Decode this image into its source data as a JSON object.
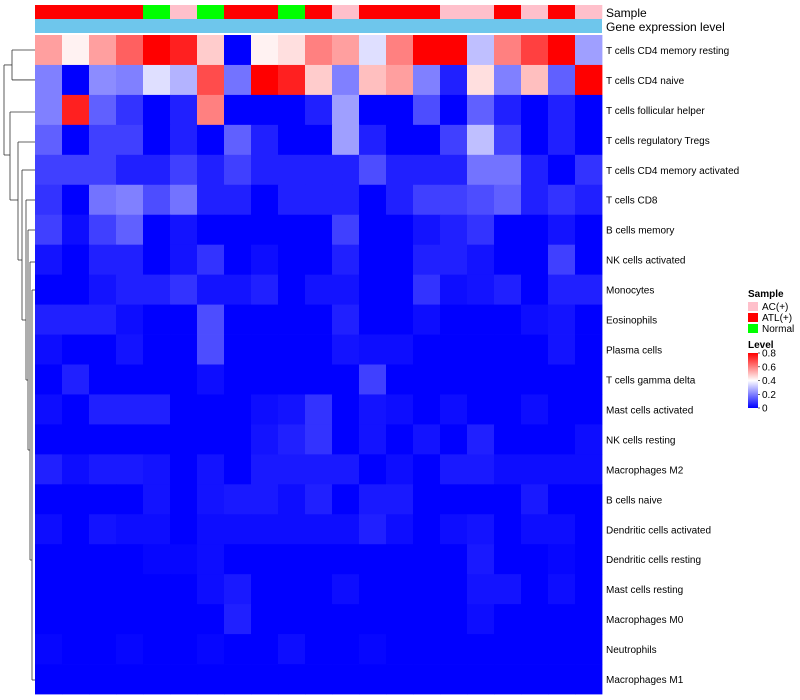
{
  "chart_data": {
    "type": "heatmap",
    "title": "",
    "annotation_tracks": [
      {
        "name": "Sample",
        "label": "Sample"
      },
      {
        "name": "Gene expression level",
        "label": "Gene expression level"
      }
    ],
    "sample_groups": [
      "ATL(+)",
      "ATL(+)",
      "ATL(+)",
      "ATL(+)",
      "Normal",
      "AC(+)",
      "Normal",
      "ATL(+)",
      "ATL(+)",
      "Normal",
      "ATL(+)",
      "AC(+)",
      "ATL(+)",
      "ATL(+)",
      "ATL(+)",
      "AC(+)",
      "AC(+)",
      "ATL(+)",
      "AC(+)",
      "ATL(+)",
      "AC(+)"
    ],
    "group_colors": {
      "AC(+)": "#ffc0cb",
      "ATL(+)": "#ff0000",
      "Normal": "#00ff00"
    },
    "expression_track_color": "#6ec6ec",
    "rows": [
      "T cells CD4 memory resting",
      "T cells CD4 naive",
      "T cells follicular helper",
      "T cells regulatory  Tregs",
      "T cells CD4 memory activated",
      "T cells CD8",
      "B cells memory",
      "NK cells activated",
      "Monocytes",
      "Eosinophils",
      "Plasma cells",
      "T cells gamma delta",
      "Mast cells activated",
      "NK cells resting",
      "Macrophages M2",
      "B cells naive",
      "Dendritic cells activated",
      "Dendritic cells resting",
      "Mast cells resting",
      "Macrophages M0",
      "Neutrophils",
      "Macrophages M1"
    ],
    "values": [
      [
        0.55,
        0.42,
        0.55,
        0.65,
        0.8,
        0.75,
        0.48,
        0.0,
        0.42,
        0.45,
        0.6,
        0.55,
        0.35,
        0.6,
        0.8,
        0.8,
        0.3,
        0.6,
        0.7,
        0.8,
        0.25
      ],
      [
        0.2,
        0.0,
        0.22,
        0.2,
        0.35,
        0.28,
        0.68,
        0.18,
        0.8,
        0.75,
        0.48,
        0.2,
        0.5,
        0.55,
        0.2,
        0.05,
        0.45,
        0.2,
        0.5,
        0.15,
        0.8
      ],
      [
        0.2,
        0.75,
        0.15,
        0.08,
        0.0,
        0.05,
        0.6,
        0.0,
        0.0,
        0.0,
        0.05,
        0.25,
        0.0,
        0.0,
        0.12,
        0.0,
        0.15,
        0.05,
        0.0,
        0.05,
        0.0
      ],
      [
        0.15,
        0.0,
        0.1,
        0.1,
        0.0,
        0.05,
        0.0,
        0.15,
        0.05,
        0.0,
        0.0,
        0.25,
        0.05,
        0.0,
        0.0,
        0.1,
        0.3,
        0.1,
        0.0,
        0.05,
        0.0
      ],
      [
        0.1,
        0.1,
        0.1,
        0.05,
        0.05,
        0.1,
        0.05,
        0.1,
        0.05,
        0.05,
        0.05,
        0.05,
        0.12,
        0.05,
        0.05,
        0.05,
        0.18,
        0.18,
        0.05,
        0.0,
        0.08
      ],
      [
        0.08,
        0.0,
        0.18,
        0.2,
        0.12,
        0.18,
        0.05,
        0.05,
        0.0,
        0.05,
        0.05,
        0.05,
        0.0,
        0.05,
        0.1,
        0.1,
        0.12,
        0.15,
        0.05,
        0.08,
        0.05
      ],
      [
        0.1,
        0.02,
        0.1,
        0.15,
        0.0,
        0.03,
        0.0,
        0.0,
        0.0,
        0.0,
        0.0,
        0.1,
        0.0,
        0.0,
        0.03,
        0.05,
        0.08,
        0.0,
        0.0,
        0.03,
        0.0
      ],
      [
        0.03,
        0.0,
        0.05,
        0.05,
        0.0,
        0.03,
        0.08,
        0.0,
        0.02,
        0.0,
        0.0,
        0.05,
        0.0,
        0.0,
        0.05,
        0.05,
        0.03,
        0.0,
        0.0,
        0.1,
        0.0
      ],
      [
        0.0,
        0.0,
        0.03,
        0.05,
        0.05,
        0.08,
        0.03,
        0.03,
        0.05,
        0.0,
        0.03,
        0.03,
        0.0,
        0.0,
        0.08,
        0.02,
        0.03,
        0.05,
        0.0,
        0.05,
        0.05
      ],
      [
        0.05,
        0.05,
        0.05,
        0.02,
        0.0,
        0.0,
        0.12,
        0.0,
        0.0,
        0.0,
        0.0,
        0.05,
        0.0,
        0.0,
        0.02,
        0.0,
        0.0,
        0.0,
        0.02,
        0.03,
        0.0
      ],
      [
        0.02,
        0.0,
        0.0,
        0.03,
        0.0,
        0.0,
        0.12,
        0.0,
        0.0,
        0.0,
        0.0,
        0.03,
        0.02,
        0.02,
        0.0,
        0.0,
        0.0,
        0.0,
        0.0,
        0.03,
        0.0
      ],
      [
        0.0,
        0.05,
        0.0,
        0.0,
        0.0,
        0.0,
        0.02,
        0.0,
        0.0,
        0.0,
        0.0,
        0.0,
        0.1,
        0.0,
        0.0,
        0.0,
        0.0,
        0.0,
        0.0,
        0.0,
        0.0
      ],
      [
        0.02,
        0.0,
        0.05,
        0.05,
        0.05,
        0.0,
        0.0,
        0.0,
        0.02,
        0.03,
        0.08,
        0.0,
        0.03,
        0.02,
        0.0,
        0.02,
        0.0,
        0.0,
        0.02,
        0.0,
        0.0
      ],
      [
        0.0,
        0.0,
        0.0,
        0.0,
        0.0,
        0.0,
        0.0,
        0.0,
        0.03,
        0.05,
        0.08,
        0.0,
        0.03,
        0.0,
        0.03,
        0.0,
        0.05,
        0.0,
        0.0,
        0.0,
        0.02
      ],
      [
        0.05,
        0.02,
        0.04,
        0.04,
        0.03,
        0.0,
        0.03,
        0.0,
        0.04,
        0.04,
        0.04,
        0.04,
        0.0,
        0.02,
        0.0,
        0.04,
        0.04,
        0.02,
        0.02,
        0.02,
        0.02
      ],
      [
        0.0,
        0.0,
        0.0,
        0.0,
        0.03,
        0.0,
        0.03,
        0.04,
        0.04,
        0.02,
        0.05,
        0.0,
        0.04,
        0.04,
        0.0,
        0.0,
        0.0,
        0.0,
        0.04,
        0.0,
        0.0
      ],
      [
        0.02,
        0.0,
        0.03,
        0.02,
        0.02,
        0.0,
        0.02,
        0.02,
        0.02,
        0.02,
        0.02,
        0.02,
        0.05,
        0.02,
        0.0,
        0.02,
        0.03,
        0.0,
        0.02,
        0.02,
        0.0
      ],
      [
        0.0,
        0.0,
        0.0,
        0.0,
        0.01,
        0.01,
        0.02,
        0.0,
        0.0,
        0.0,
        0.0,
        0.0,
        0.0,
        0.0,
        0.0,
        0.0,
        0.04,
        0.0,
        0.0,
        0.01,
        0.0
      ],
      [
        0.0,
        0.0,
        0.0,
        0.0,
        0.0,
        0.0,
        0.02,
        0.04,
        0.0,
        0.0,
        0.0,
        0.02,
        0.0,
        0.0,
        0.0,
        0.0,
        0.03,
        0.03,
        0.0,
        0.02,
        0.0
      ],
      [
        0.0,
        0.0,
        0.0,
        0.0,
        0.0,
        0.0,
        0.0,
        0.05,
        0.0,
        0.0,
        0.0,
        0.0,
        0.0,
        0.0,
        0.0,
        0.0,
        0.02,
        0.0,
        0.0,
        0.0,
        0.0
      ],
      [
        0.01,
        0.0,
        0.0,
        0.01,
        0.0,
        0.0,
        0.01,
        0.0,
        0.0,
        0.02,
        0.0,
        0.0,
        0.01,
        0.0,
        0.0,
        0.0,
        0.0,
        0.0,
        0.0,
        0.0,
        0.0
      ],
      [
        0.0,
        0.0,
        0.0,
        0.0,
        0.0,
        0.0,
        0.0,
        0.0,
        0.0,
        0.0,
        0.0,
        0.0,
        0.0,
        0.0,
        0.0,
        0.0,
        0.0,
        0.0,
        0.0,
        0.0,
        0.0
      ]
    ],
    "color_scale": {
      "min": 0,
      "max": 0.8,
      "low": "#0000ff",
      "mid": "#ffffff",
      "high": "#ff0000",
      "mid_value": 0.4
    },
    "legend": {
      "sample_title": "Sample",
      "sample_entries": [
        "AC(+)",
        "ATL(+)",
        "Normal"
      ],
      "level_title": "Level",
      "level_ticks": [
        "0.8",
        "0.6",
        "0.4",
        "0.2",
        "0"
      ],
      "level_tick_values": [
        0.8,
        0.6,
        0.4,
        0.2,
        0
      ],
      "placement": "right"
    },
    "row_dendrogram": true
  }
}
